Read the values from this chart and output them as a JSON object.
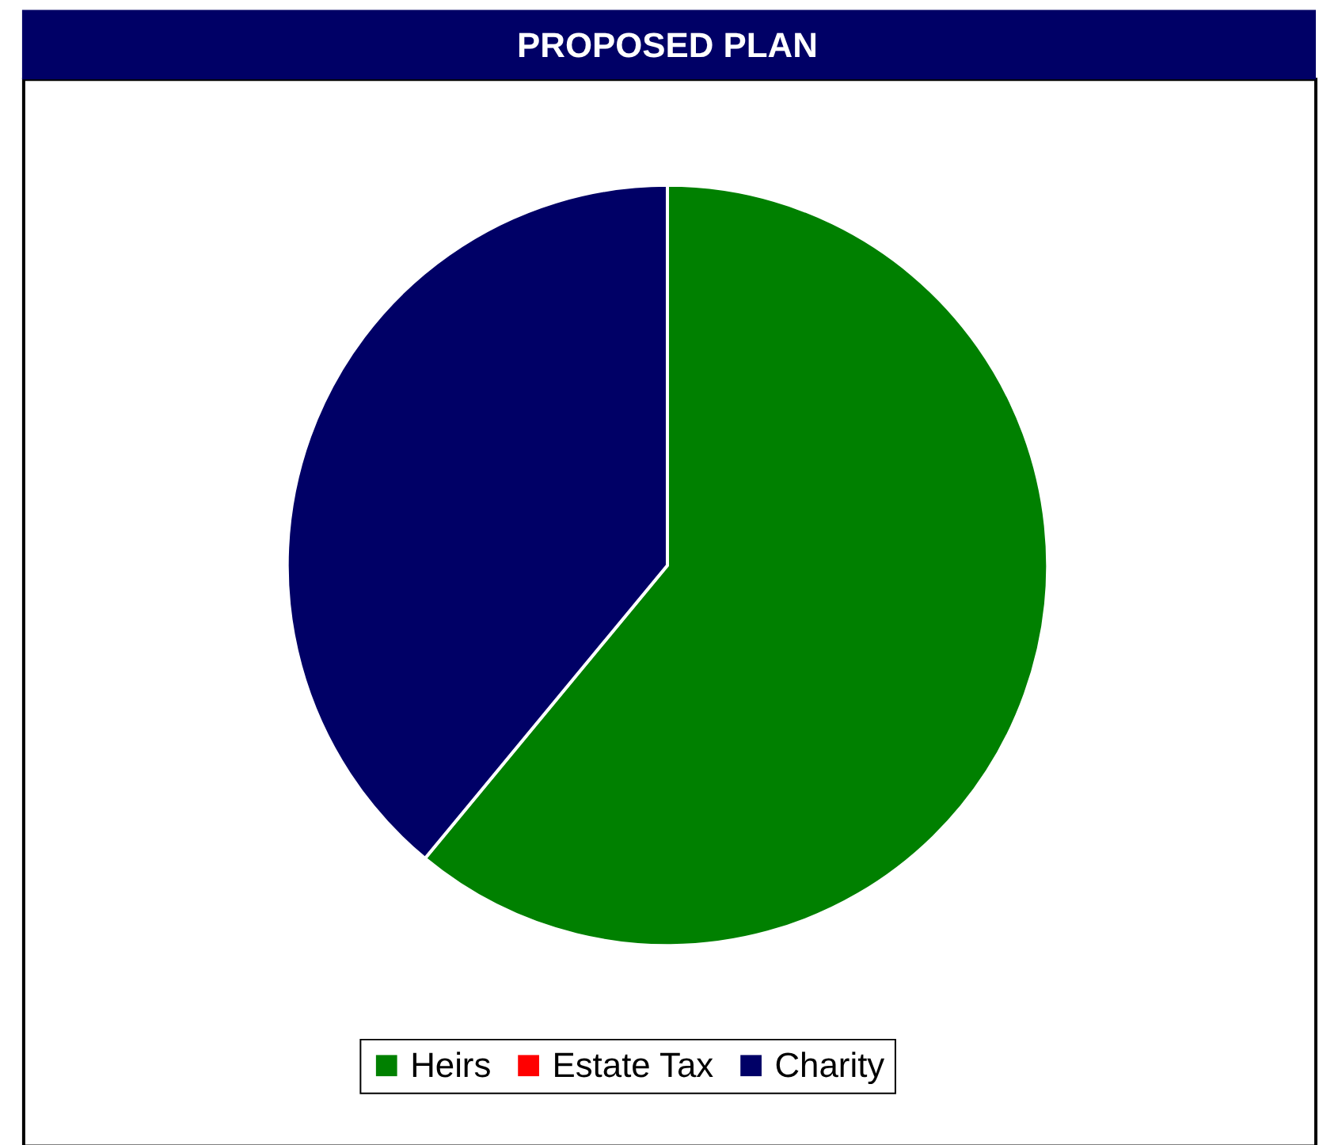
{
  "chart_data": {
    "type": "pie",
    "title": "PROPOSED PLAN",
    "categories": [
      "Heirs",
      "Estate Tax",
      "Charity"
    ],
    "values": [
      61,
      0,
      39
    ],
    "colors": [
      "#008000",
      "#ff0000",
      "#000066"
    ],
    "legend": "bottom"
  }
}
